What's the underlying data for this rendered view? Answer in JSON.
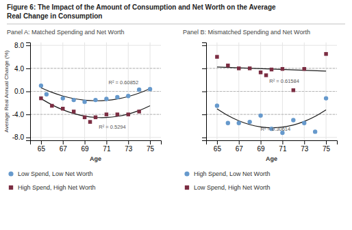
{
  "chart_data": [
    {
      "type": "scatter",
      "title": [
        "Figure 6: The Impact of the Amount of Consumption and Net Worth on the Average",
        "Real Change in Consumption"
      ],
      "subtitle": "Panel A: Matched Spending and Net Worth",
      "x_label": "Age",
      "y_label": "Average Real Annual Change (%)",
      "xlim": [
        64.0,
        76.0
      ],
      "ylim": [
        -8.5,
        8.5
      ],
      "xticks": [
        65,
        67,
        69,
        71,
        73,
        75
      ],
      "yticks": [
        {
          "value": -8.0,
          "label": "-8.0"
        },
        {
          "value": -4.0,
          "label": "-4.0"
        },
        {
          "value": 0.0,
          "label": "0.0"
        },
        {
          "value": 4.0,
          "label": "4.0"
        },
        {
          "value": 8.0,
          "label": "8.0"
        }
      ],
      "grid": true,
      "legend": "bottom",
      "reference_lines": [
        -4.0,
        0.0,
        4.0
      ],
      "series": [
        {
          "type": "line",
          "color": "#1a1a1a",
          "line_style": "solid",
          "x": [
            65,
            66,
            67,
            68,
            69,
            70,
            71,
            72,
            73,
            74,
            75
          ],
          "values": [
            0.633,
            -0.17,
            -0.798,
            -1.251,
            -1.53,
            -1.633,
            -1.562,
            -1.315,
            -0.894,
            -0.298,
            0.473
          ]
        },
        {
          "type": "line",
          "color": "#1a1a1a",
          "line_style": "solid",
          "x": [
            65,
            66,
            67,
            68,
            69,
            70,
            71,
            72,
            73,
            74,
            75
          ],
          "values": [
            -1.261,
            -2.335,
            -3.197,
            -3.848,
            -4.288,
            -4.517,
            -4.534,
            -4.34,
            -3.934,
            -3.317,
            -2.489
          ]
        },
        {
          "name": "Low Spend, Low Net Worth",
          "type": "scatter",
          "color": "#6699CC",
          "marker": "circle",
          "x": [
            65,
            65.5,
            67,
            68,
            69,
            70,
            71,
            72,
            73,
            74,
            75
          ],
          "values": [
            1.0,
            -0.5,
            -1.2,
            -1.5,
            -1.8,
            -1.5,
            -1.3,
            -1.0,
            -0.8,
            0.3,
            0.4
          ]
        },
        {
          "name": "High Spend, High Net Worth",
          "type": "scatter",
          "color": "#7B2D42",
          "marker": "square",
          "x": [
            65,
            66,
            67,
            68,
            69,
            69.5,
            70,
            71,
            72,
            73,
            74
          ],
          "values": [
            -1.2,
            -2.5,
            -3.0,
            -3.5,
            -4.5,
            -5.3,
            -4.5,
            -4.0,
            -4.0,
            -4.0,
            -3.5
          ]
        }
      ],
      "annotations": [
        {
          "text": "R² = 0.60852",
          "x": 71.2,
          "y": 1.3
        },
        {
          "text": "R² = 0.5294",
          "x": 70.3,
          "y": -6.5
        }
      ]
    },
    {
      "type": "scatter",
      "subtitle": "Panel B: Mismatched Spending and Net Worth",
      "x_label": "Age",
      "xlim": [
        64.0,
        76.0
      ],
      "ylim": [
        -8.5,
        8.5
      ],
      "xticks": [
        65,
        67,
        69,
        71,
        73,
        75
      ],
      "yticks": [
        -8.0,
        -4.0,
        0.0,
        4.0,
        8.0
      ],
      "tick_labels": "x",
      "grid": true,
      "legend": "bottom",
      "reference_lines": [
        -4.0,
        0.0,
        4.0
      ],
      "series": [
        {
          "type": "line",
          "color": "#1a1a1a",
          "line_style": "solid",
          "x": [
            65,
            66,
            67,
            68,
            69,
            70,
            71,
            72,
            73,
            74,
            75
          ],
          "values": [
            -3.029,
            -4.199,
            -5.113,
            -5.77,
            -6.172,
            -6.317,
            -6.206,
            -5.839,
            -5.216,
            -4.337,
            -3.201
          ]
        },
        {
          "type": "line",
          "color": "#1a1a1a",
          "line_style": "solid",
          "x": [
            65,
            75
          ],
          "values": [
            4.23,
            3.511
          ]
        },
        {
          "name": "High Spend, Low Net Worth",
          "type": "scatter",
          "color": "#6699CC",
          "marker": "circle",
          "x": [
            65,
            66,
            67,
            68,
            69,
            70,
            71,
            72,
            73,
            74,
            75
          ],
          "values": [
            -2.5,
            -5.5,
            -5.5,
            -5.3,
            -4.2,
            -6.5,
            -7.2,
            -5.0,
            -5.5,
            -7.0,
            -1.2
          ]
        },
        {
          "name": "Low Spend, High Net Worth",
          "type": "scatter",
          "color": "#7B2D42",
          "marker": "square",
          "x": [
            65,
            66,
            67,
            68,
            69,
            69.5,
            70,
            71,
            72,
            73,
            75
          ],
          "values": [
            6.0,
            4.5,
            4.0,
            4.0,
            3.3,
            2.8,
            3.8,
            3.9,
            0.2,
            3.9,
            6.5
          ]
        }
      ],
      "annotations": [
        {
          "text": "R² = 0.61584",
          "x": 69.8,
          "y": 1.5
        },
        {
          "text": "R² = 0.30614",
          "x": 69.0,
          "y": -6.8
        }
      ]
    }
  ]
}
